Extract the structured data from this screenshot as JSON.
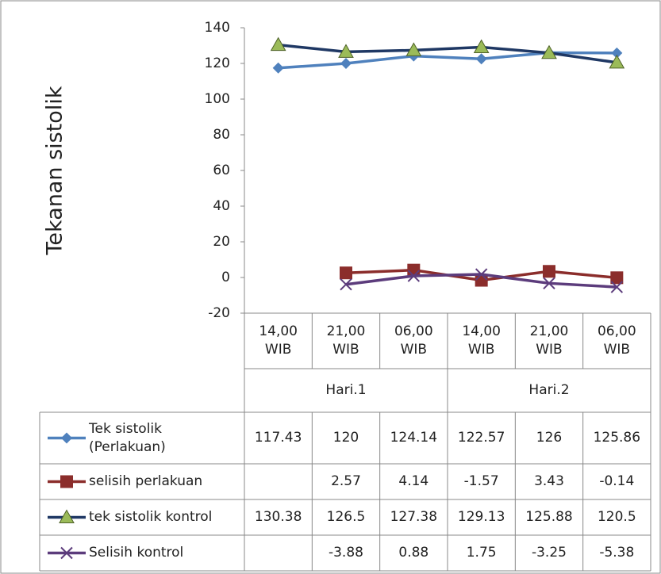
{
  "chart_data": {
    "type": "line",
    "y_label": "Tekanan sistolik",
    "categories": [
      "14,00 WIB",
      "21,00 WIB",
      "06,00 WIB",
      "14,00 WIB",
      "21,00 WIB",
      "06,00 WIB"
    ],
    "category_groups": [
      "Hari.1",
      "Hari.2"
    ],
    "ylim": [
      -20,
      140
    ],
    "yticks": [
      -20,
      0,
      20,
      40,
      60,
      80,
      100,
      120,
      140
    ],
    "grid": false,
    "series": [
      {
        "name": "Tek sistolik (Perlakuan)",
        "color": "#4f81bd",
        "marker": "diamond",
        "marker_color": "#4f81bd",
        "values": [
          117.43,
          120,
          124.14,
          122.57,
          126,
          125.86
        ]
      },
      {
        "name": "selisih perlakuan",
        "color": "#8b2d2b",
        "marker": "square",
        "marker_color": "#8b2d2b",
        "values": [
          null,
          2.57,
          4.14,
          -1.57,
          3.43,
          -0.14
        ]
      },
      {
        "name": "tek sistolik kontrol",
        "color": "#1f3864",
        "marker": "triangle",
        "marker_color": "#9bbb59",
        "values": [
          130.38,
          126.5,
          127.38,
          129.13,
          125.88,
          120.5
        ]
      },
      {
        "name": "Selisih kontrol",
        "color": "#5c3c7c",
        "marker": "x",
        "marker_color": "#5c3c7c",
        "values": [
          null,
          -3.88,
          0.88,
          1.75,
          -3.25,
          -5.38
        ]
      }
    ]
  }
}
